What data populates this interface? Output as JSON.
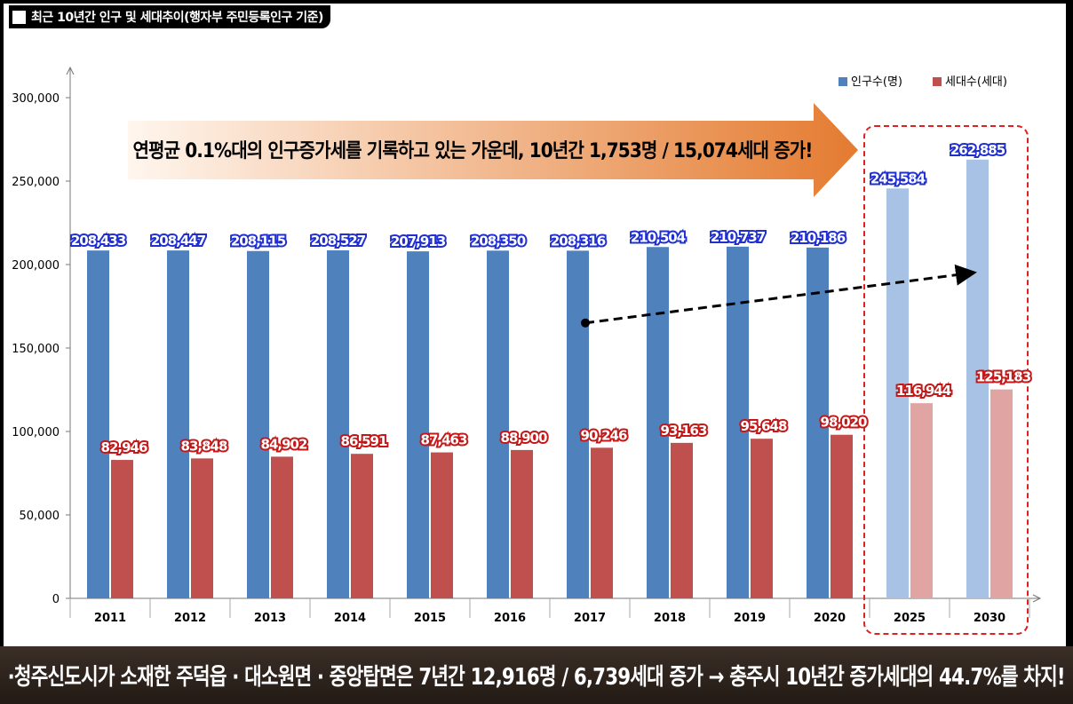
{
  "header": {
    "title": "최근 10년간 인구 및 세대추이(행자부 주민등록인구 기준)"
  },
  "banner": {
    "text": "연평균 0.1%대의 인구증가세를 기록하고 있는 가운데, 10년간 1,753명 / 15,074세대 증가!"
  },
  "footer": {
    "text": "·청주신도시가 소재한 주덕읍 · 대소원면 · 중앙탑면은 7년간 12,916명 / 6,739세대 증가 → 충주시 10년간 증가세대의 44.7%를 차지!"
  },
  "colors": {
    "population": "#4f81bd",
    "population_forecast": "#a7c2e4",
    "households": "#c0504d",
    "households_forecast": "#e0a5a3",
    "banner_start": "#fff6ee",
    "banner_end": "#e47b30",
    "forecast_border": "#e02020"
  },
  "chart_data": {
    "type": "bar",
    "categories": [
      "2011",
      "2012",
      "2013",
      "2014",
      "2015",
      "2016",
      "2017",
      "2018",
      "2019",
      "2020",
      "2025",
      "2030"
    ],
    "series": [
      {
        "name": "인구수(명)",
        "values": [
          208433,
          208447,
          208115,
          208527,
          207913,
          208350,
          208316,
          210504,
          210737,
          210186,
          245584,
          262885
        ],
        "labels": [
          "208,433",
          "208,447",
          "208,115",
          "208,527",
          "207,913",
          "208,350",
          "208,316",
          "210,504",
          "210,737",
          "210,186",
          "245,584",
          "262,885"
        ]
      },
      {
        "name": "세대수(세대)",
        "values": [
          82946,
          83848,
          84902,
          86591,
          87463,
          88900,
          90246,
          93163,
          95648,
          98020,
          116944,
          125183
        ],
        "labels": [
          "82,946",
          "83,848",
          "84,902",
          "86,591",
          "87,463",
          "88,900",
          "90,246",
          "93,163",
          "95,648",
          "98,020",
          "116,944",
          "125,183"
        ]
      }
    ],
    "forecast_categories": [
      "2025",
      "2030"
    ],
    "ylim": [
      0,
      300000
    ],
    "yticks": [
      0,
      50000,
      100000,
      150000,
      200000,
      250000,
      300000
    ],
    "ytick_labels": [
      "0",
      "50,000",
      "100,000",
      "150,000",
      "200,000",
      "250,000",
      "300,000"
    ],
    "legend_position": "top-right",
    "grid": false,
    "trend_arrow": {
      "from": [
        "2017",
        165000
      ],
      "to": [
        "2030",
        195000
      ]
    }
  }
}
